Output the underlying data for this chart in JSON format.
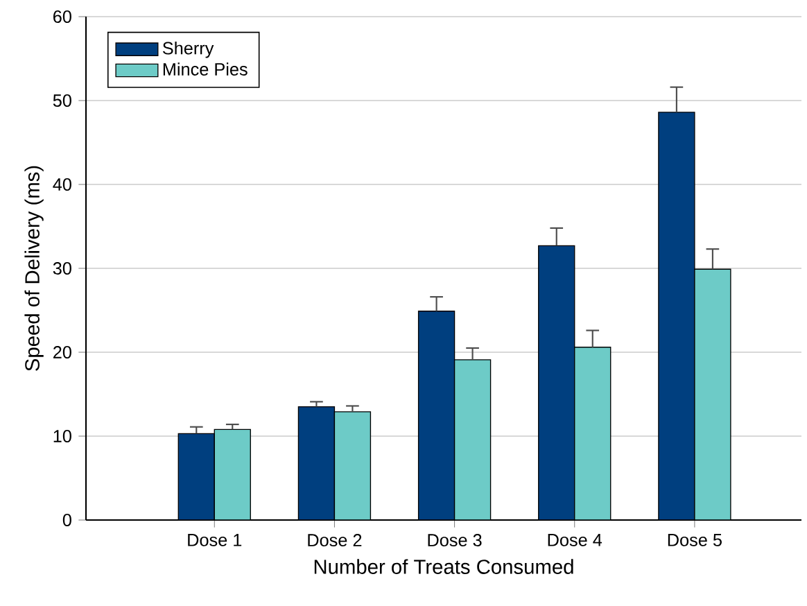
{
  "chart_data": {
    "type": "bar",
    "xlabel": "Number of Treats Consumed",
    "ylabel": "Speed of Delivery (ms)",
    "categories": [
      "Dose 1",
      "Dose 2",
      "Dose 3",
      "Dose 4",
      "Dose 5"
    ],
    "series": [
      {
        "name": "Sherry",
        "color": "#003f7f",
        "values": [
          10.3,
          13.5,
          24.9,
          32.7,
          48.6
        ],
        "errors": [
          [
            10.3,
            11.1
          ],
          [
            13.5,
            14.1
          ],
          [
            24.9,
            26.6
          ],
          [
            32.7,
            34.8
          ],
          [
            48.6,
            51.6
          ]
        ]
      },
      {
        "name": "Mince Pies",
        "color": "#6dcbc7",
        "values": [
          10.8,
          12.9,
          19.1,
          20.6,
          29.9
        ],
        "errors": [
          [
            10.8,
            11.4
          ],
          [
            12.9,
            13.6
          ],
          [
            19.1,
            20.5
          ],
          [
            20.6,
            22.6
          ],
          [
            29.9,
            32.3
          ]
        ]
      }
    ],
    "ylim": [
      0,
      60
    ],
    "yticks": [
      0,
      10,
      20,
      30,
      40,
      50,
      60
    ],
    "grid": "y",
    "legend": "top left"
  }
}
